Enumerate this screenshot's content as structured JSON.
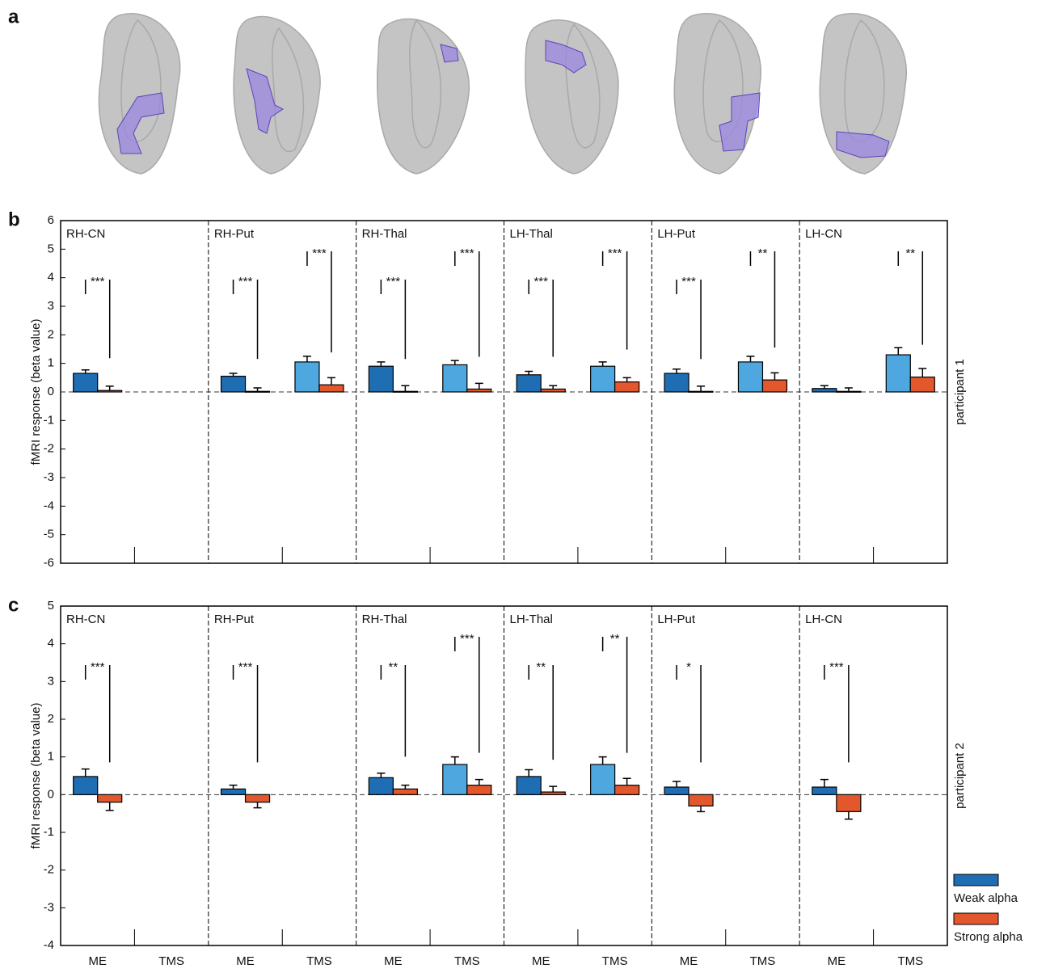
{
  "panel_a": {
    "label": "a"
  },
  "chart_data": [
    {
      "type": "bar",
      "panel": "b",
      "ylabel": "fMRI response (beta value)",
      "side_label": "participant 1",
      "ylim": [
        -6,
        6
      ],
      "yticks": [
        -6,
        -5,
        -4,
        -3,
        -2,
        -1,
        0,
        1,
        2,
        3,
        4,
        5,
        6
      ],
      "regions": [
        "RH-CN",
        "RH-Put",
        "RH-Thal",
        "LH-Thal",
        "LH-Put",
        "LH-CN"
      ],
      "series": [
        {
          "color": "#1f6db3",
          "tms_color": "#4fa7df",
          "values": [
            0.65,
            null,
            0.55,
            1.05,
            0.9,
            0.95,
            0.6,
            0.9,
            0.65,
            1.05,
            0.12,
            1.3
          ],
          "errors": [
            0.12,
            null,
            0.1,
            0.2,
            0.15,
            0.15,
            0.12,
            0.15,
            0.15,
            0.2,
            0.1,
            0.25
          ]
        },
        {
          "color": "#e2572b",
          "values": [
            0.05,
            null,
            0.02,
            0.25,
            0.02,
            0.1,
            0.1,
            0.35,
            0.02,
            0.42,
            0.02,
            0.52
          ],
          "errors": [
            0.15,
            null,
            0.12,
            0.25,
            0.2,
            0.2,
            0.12,
            0.15,
            0.18,
            0.25,
            0.12,
            0.3
          ]
        }
      ],
      "significance": [
        "***",
        null,
        "***",
        "***",
        "***",
        "***",
        "***",
        "***",
        "***",
        "**",
        null,
        "**"
      ]
    },
    {
      "type": "bar",
      "panel": "c",
      "ylabel": "fMRI response (beta value)",
      "side_label": "participant 2",
      "ylim": [
        -4,
        5
      ],
      "yticks": [
        -4,
        -3,
        -2,
        -1,
        0,
        1,
        2,
        3,
        4,
        5
      ],
      "regions": [
        "RH-CN",
        "RH-Put",
        "RH-Thal",
        "LH-Thal",
        "LH-Put",
        "LH-CN"
      ],
      "categories": [
        "ME",
        "TMS",
        "ME",
        "TMS",
        "ME",
        "TMS",
        "ME",
        "TMS",
        "ME",
        "TMS",
        "ME",
        "TMS"
      ],
      "series": [
        {
          "name": "Weak alpha",
          "color": "#1f6db3",
          "tms_color": "#4fa7df",
          "values": [
            0.48,
            null,
            0.15,
            null,
            0.45,
            0.8,
            0.48,
            0.8,
            0.2,
            null,
            0.2,
            null
          ],
          "errors": [
            0.2,
            null,
            0.1,
            null,
            0.12,
            0.2,
            0.18,
            0.2,
            0.15,
            null,
            0.2,
            null
          ]
        },
        {
          "name": "Strong alpha",
          "color": "#e2572b",
          "values": [
            -0.2,
            null,
            -0.2,
            null,
            0.15,
            0.25,
            0.07,
            0.25,
            -0.3,
            null,
            -0.45,
            null
          ],
          "errors": [
            0.22,
            null,
            0.15,
            null,
            0.1,
            0.15,
            0.15,
            0.18,
            0.15,
            null,
            0.2,
            null
          ]
        }
      ],
      "significance": [
        "***",
        null,
        "***",
        null,
        "**",
        "***",
        "**",
        "**",
        "*",
        null,
        "***",
        null
      ]
    }
  ]
}
